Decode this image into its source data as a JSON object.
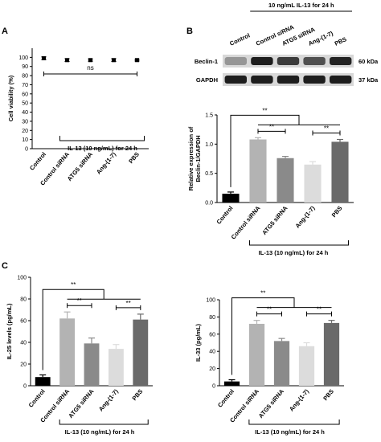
{
  "panels": {
    "a": "A",
    "b": "B",
    "c": "C"
  },
  "blot": {
    "treatment_label": "10 ng/mL IL-13 for 24 h",
    "lanes": [
      "Control",
      "Control siRNA",
      "ATG5 siRNA",
      "Ang-(1-7)",
      "PBS"
    ],
    "rows": [
      {
        "name": "Beclin-1",
        "mw": "60 kDa",
        "intensity": [
          0.35,
          0.95,
          0.8,
          0.7,
          0.92
        ]
      },
      {
        "name": "GAPDH",
        "mw": "37 kDa",
        "intensity": [
          0.95,
          0.95,
          0.95,
          0.95,
          0.95
        ]
      }
    ]
  },
  "chart_data": [
    {
      "panel": "A",
      "type": "scatter",
      "categories": [
        "Control",
        "Control siRNA",
        "ATG5 siRNA",
        "Ang-(1-7)",
        "PBS"
      ],
      "values": [
        99,
        97,
        97,
        97,
        97
      ],
      "errors": [
        1.5,
        1.5,
        1.2,
        1.5,
        1.0
      ],
      "ylabel": "Cell viability (%)",
      "ylim": [
        0,
        110
      ],
      "yticks": [
        0,
        10,
        20,
        30,
        40,
        50,
        60,
        70,
        80,
        90,
        100
      ],
      "xgroup_label": "IL-13 (10 ng/mL) for 24 h",
      "annotations": [
        {
          "from": 0,
          "to": 4,
          "label": "ns"
        }
      ]
    },
    {
      "panel": "B",
      "type": "bar",
      "categories": [
        "Control",
        "Control siRNA",
        "ATG5 siRNA",
        "Ang-(1-7)",
        "PBS"
      ],
      "values": [
        0.15,
        1.08,
        0.76,
        0.65,
        1.04
      ],
      "errors": [
        0.03,
        0.03,
        0.03,
        0.05,
        0.04
      ],
      "colors": [
        "#000000",
        "#b3b3b3",
        "#8a8a8a",
        "#dcdcdc",
        "#6a6a6a"
      ],
      "ylabel": "Relative expression of Beclin-1/GAPDH",
      "ylim": [
        0,
        1.5
      ],
      "yticks": [
        0.0,
        0.5,
        1.0,
        1.5
      ],
      "xgroup_label": "IL-13 (10 ng/mL) for 24 h",
      "annotations": [
        {
          "from": 0,
          "span": [
            1,
            4
          ],
          "label": "**"
        },
        {
          "from": 1,
          "to": 2,
          "label": "**"
        },
        {
          "from": 3,
          "to": 4,
          "label": "**"
        }
      ]
    },
    {
      "panel": "C-left",
      "type": "bar",
      "categories": [
        "Control",
        "Control siRNA",
        "ATG5 siRNA",
        "Ang-(1-7)",
        "PBS"
      ],
      "values": [
        8,
        62,
        39,
        34,
        61
      ],
      "errors": [
        2,
        6,
        5,
        4,
        5
      ],
      "colors": [
        "#000000",
        "#b3b3b3",
        "#8a8a8a",
        "#dcdcdc",
        "#6a6a6a"
      ],
      "ylabel": "IL-25 levels (pg/mL)",
      "ylim": [
        0,
        100
      ],
      "yticks": [
        0,
        20,
        40,
        60,
        80,
        100
      ],
      "xgroup_label": "IL-13 (10 ng/mL) for 24 h",
      "annotations": [
        {
          "from": 0,
          "span": [
            1,
            4
          ],
          "label": "**"
        },
        {
          "from": 1,
          "to": 2,
          "label": "**"
        },
        {
          "from": 3,
          "to": 4,
          "label": "**"
        }
      ]
    },
    {
      "panel": "C-right",
      "type": "bar",
      "categories": [
        "Control",
        "Control siRNA",
        "ATG5 siRNA",
        "Ang-(1-7)",
        "PBS"
      ],
      "values": [
        5,
        72,
        52,
        46,
        73
      ],
      "errors": [
        2,
        4,
        3,
        4,
        3
      ],
      "colors": [
        "#000000",
        "#b3b3b3",
        "#8a8a8a",
        "#dcdcdc",
        "#6a6a6a"
      ],
      "ylabel": "IL-33 (pg/mL)",
      "ylim": [
        0,
        100
      ],
      "yticks": [
        0,
        20,
        40,
        60,
        80,
        100
      ],
      "xgroup_label": "IL-13 (10 ng/mL) for 24 h",
      "annotations": [
        {
          "from": 0,
          "span": [
            1,
            4
          ],
          "label": "**"
        },
        {
          "from": 1,
          "to": 2,
          "label": "**"
        },
        {
          "from": 3,
          "to": 4,
          "label": "**"
        }
      ]
    }
  ]
}
